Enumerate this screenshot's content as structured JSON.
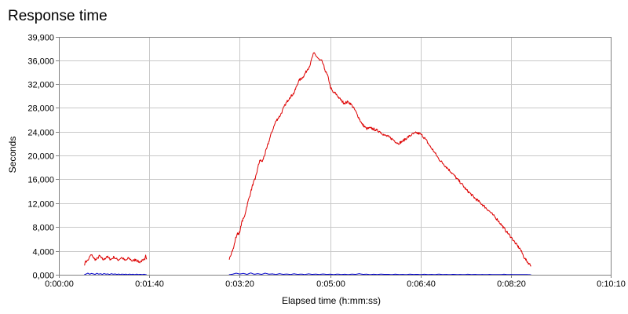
{
  "chart_data": {
    "type": "line",
    "title": "Response time",
    "xlabel": "Elapsed time (h:mm:ss)",
    "ylabel": "Seconds",
    "xlim": [
      0,
      610
    ],
    "ylim": [
      0,
      39900
    ],
    "grid": true,
    "x_ticks": [
      {
        "value": 0,
        "label": "0:00:00"
      },
      {
        "value": 100,
        "label": "0:01:40"
      },
      {
        "value": 200,
        "label": "0:03:20"
      },
      {
        "value": 300,
        "label": "0:05:00"
      },
      {
        "value": 400,
        "label": "0:06:40"
      },
      {
        "value": 500,
        "label": "0:08:20"
      },
      {
        "value": 610,
        "label": "0:10:10"
      }
    ],
    "y_ticks": [
      {
        "value": 0,
        "label": "0,000"
      },
      {
        "value": 4000,
        "label": "4,000"
      },
      {
        "value": 8000,
        "label": "8,000"
      },
      {
        "value": 12000,
        "label": "12,000"
      },
      {
        "value": 16000,
        "label": "16,000"
      },
      {
        "value": 20000,
        "label": "20,000"
      },
      {
        "value": 24000,
        "label": "24,000"
      },
      {
        "value": 28000,
        "label": "28,000"
      },
      {
        "value": 32000,
        "label": "32,000"
      },
      {
        "value": 36000,
        "label": "36,000"
      },
      {
        "value": 39900,
        "label": "39,900"
      }
    ],
    "series": [
      {
        "color": "#dd0000",
        "segments": [
          [
            [
              28,
              1600
            ],
            [
              29,
              2100
            ],
            [
              31,
              2300
            ],
            [
              33,
              2600
            ],
            [
              35,
              3300
            ],
            [
              37,
              3200
            ],
            [
              39,
              2700
            ],
            [
              41,
              2500
            ],
            [
              43,
              2800
            ],
            [
              45,
              3200
            ],
            [
              47,
              2800
            ],
            [
              49,
              2500
            ],
            [
              51,
              2700
            ],
            [
              53,
              3100
            ],
            [
              55,
              2800
            ],
            [
              57,
              2600
            ],
            [
              59,
              2700
            ],
            [
              61,
              3000
            ],
            [
              63,
              2700
            ],
            [
              65,
              2500
            ],
            [
              67,
              2600
            ],
            [
              69,
              2900
            ],
            [
              71,
              2700
            ],
            [
              73,
              2400
            ],
            [
              75,
              2500
            ],
            [
              77,
              2800
            ],
            [
              79,
              2600
            ],
            [
              81,
              2300
            ],
            [
              83,
              2400
            ],
            [
              85,
              2600
            ],
            [
              87,
              2300
            ],
            [
              89,
              2100
            ],
            [
              91,
              2300
            ],
            [
              93,
              2400
            ],
            [
              95,
              2500
            ],
            [
              96,
              3300
            ],
            [
              97,
              2600
            ]
          ],
          [
            [
              188,
              2600
            ],
            [
              189,
              3000
            ],
            [
              191,
              3800
            ],
            [
              193,
              4400
            ],
            [
              195,
              5900
            ],
            [
              197,
              6800
            ],
            [
              200,
              7100
            ],
            [
              202,
              8800
            ],
            [
              205,
              9700
            ],
            [
              207,
              11000
            ],
            [
              210,
              12800
            ],
            [
              212,
              13800
            ],
            [
              215,
              15500
            ],
            [
              217,
              16000
            ],
            [
              220,
              18000
            ],
            [
              222,
              19200
            ],
            [
              225,
              19000
            ],
            [
              230,
              21300
            ],
            [
              235,
              23800
            ],
            [
              240,
              25800
            ],
            [
              245,
              26800
            ],
            [
              250,
              28500
            ],
            [
              255,
              29700
            ],
            [
              260,
              30500
            ],
            [
              265,
              32500
            ],
            [
              270,
              33200
            ],
            [
              275,
              34500
            ],
            [
              278,
              35300
            ],
            [
              280,
              36500
            ],
            [
              282,
              37200
            ],
            [
              285,
              36600
            ],
            [
              288,
              36000
            ],
            [
              291,
              35800
            ],
            [
              294,
              34400
            ],
            [
              298,
              33000
            ],
            [
              300,
              31500
            ],
            [
              303,
              30600
            ],
            [
              306,
              30400
            ],
            [
              310,
              29600
            ],
            [
              315,
              28800
            ],
            [
              320,
              29000
            ],
            [
              323,
              28600
            ],
            [
              327,
              27700
            ],
            [
              330,
              26800
            ],
            [
              335,
              25300
            ],
            [
              340,
              24500
            ],
            [
              345,
              24600
            ],
            [
              350,
              24300
            ],
            [
              355,
              24000
            ],
            [
              360,
              23400
            ],
            [
              365,
              23100
            ],
            [
              370,
              22600
            ],
            [
              375,
              22000
            ],
            [
              380,
              22400
            ],
            [
              385,
              23000
            ],
            [
              390,
              23500
            ],
            [
              395,
              23800
            ],
            [
              400,
              23600
            ],
            [
              405,
              22800
            ],
            [
              410,
              21600
            ],
            [
              415,
              20600
            ],
            [
              420,
              19400
            ],
            [
              425,
              18600
            ],
            [
              430,
              17800
            ],
            [
              435,
              17000
            ],
            [
              440,
              16100
            ],
            [
              445,
              15300
            ],
            [
              450,
              14300
            ],
            [
              455,
              13600
            ],
            [
              460,
              12800
            ],
            [
              465,
              12200
            ],
            [
              470,
              11500
            ],
            [
              475,
              10800
            ],
            [
              480,
              10000
            ],
            [
              485,
              9200
            ],
            [
              490,
              8200
            ],
            [
              495,
              7200
            ],
            [
              500,
              6300
            ],
            [
              505,
              5200
            ],
            [
              510,
              4300
            ],
            [
              515,
              2700
            ],
            [
              520,
              1800
            ],
            [
              522,
              1500
            ]
          ]
        ]
      },
      {
        "color": "#0000cc",
        "segments": [
          [
            [
              28,
              0
            ],
            [
              30,
              120
            ],
            [
              32,
              260
            ],
            [
              34,
              90
            ],
            [
              36,
              210
            ],
            [
              38,
              140
            ],
            [
              40,
              60
            ],
            [
              42,
              240
            ],
            [
              44,
              100
            ],
            [
              46,
              170
            ],
            [
              48,
              60
            ],
            [
              50,
              200
            ],
            [
              52,
              90
            ],
            [
              54,
              150
            ],
            [
              56,
              40
            ],
            [
              58,
              180
            ],
            [
              60,
              80
            ],
            [
              62,
              140
            ],
            [
              64,
              50
            ],
            [
              66,
              120
            ],
            [
              68,
              40
            ],
            [
              70,
              110
            ],
            [
              72,
              60
            ],
            [
              74,
              90
            ],
            [
              76,
              30
            ],
            [
              78,
              100
            ],
            [
              80,
              50
            ],
            [
              82,
              80
            ],
            [
              84,
              30
            ],
            [
              86,
              90
            ],
            [
              88,
              40
            ],
            [
              90,
              70
            ],
            [
              92,
              30
            ],
            [
              94,
              80
            ],
            [
              96,
              20
            ],
            [
              97,
              0
            ]
          ],
          [
            [
              188,
              0
            ],
            [
              192,
              90
            ],
            [
              196,
              260
            ],
            [
              200,
              120
            ],
            [
              204,
              220
            ],
            [
              208,
              60
            ],
            [
              212,
              300
            ],
            [
              216,
              80
            ],
            [
              220,
              180
            ],
            [
              224,
              60
            ],
            [
              228,
              260
            ],
            [
              232,
              100
            ],
            [
              236,
              140
            ],
            [
              240,
              40
            ],
            [
              244,
              180
            ],
            [
              248,
              60
            ],
            [
              252,
              120
            ],
            [
              256,
              40
            ],
            [
              260,
              160
            ],
            [
              264,
              50
            ],
            [
              268,
              110
            ],
            [
              272,
              30
            ],
            [
              276,
              150
            ],
            [
              280,
              60
            ],
            [
              284,
              100
            ],
            [
              288,
              40
            ],
            [
              292,
              130
            ],
            [
              296,
              50
            ],
            [
              300,
              90
            ],
            [
              304,
              30
            ],
            [
              308,
              110
            ],
            [
              312,
              40
            ],
            [
              316,
              80
            ],
            [
              320,
              30
            ],
            [
              324,
              100
            ],
            [
              328,
              60
            ],
            [
              332,
              180
            ],
            [
              336,
              60
            ],
            [
              340,
              90
            ],
            [
              344,
              30
            ],
            [
              348,
              80
            ],
            [
              352,
              40
            ],
            [
              356,
              100
            ],
            [
              360,
              60
            ],
            [
              364,
              70
            ],
            [
              368,
              30
            ],
            [
              372,
              90
            ],
            [
              376,
              40
            ],
            [
              380,
              60
            ],
            [
              384,
              30
            ],
            [
              388,
              90
            ],
            [
              392,
              50
            ],
            [
              396,
              70
            ],
            [
              400,
              30
            ],
            [
              404,
              80
            ],
            [
              408,
              40
            ],
            [
              412,
              60
            ],
            [
              416,
              30
            ],
            [
              420,
              100
            ],
            [
              424,
              40
            ],
            [
              428,
              60
            ],
            [
              432,
              30
            ],
            [
              436,
              70
            ],
            [
              440,
              40
            ],
            [
              444,
              50
            ],
            [
              448,
              20
            ],
            [
              452,
              80
            ],
            [
              456,
              40
            ],
            [
              460,
              60
            ],
            [
              464,
              30
            ],
            [
              468,
              50
            ],
            [
              472,
              20
            ],
            [
              476,
              60
            ],
            [
              480,
              30
            ],
            [
              484,
              40
            ],
            [
              488,
              20
            ],
            [
              492,
              80
            ],
            [
              496,
              30
            ],
            [
              500,
              50
            ],
            [
              504,
              20
            ],
            [
              508,
              40
            ],
            [
              512,
              20
            ],
            [
              516,
              30
            ],
            [
              520,
              10
            ],
            [
              522,
              0
            ]
          ]
        ]
      }
    ]
  }
}
